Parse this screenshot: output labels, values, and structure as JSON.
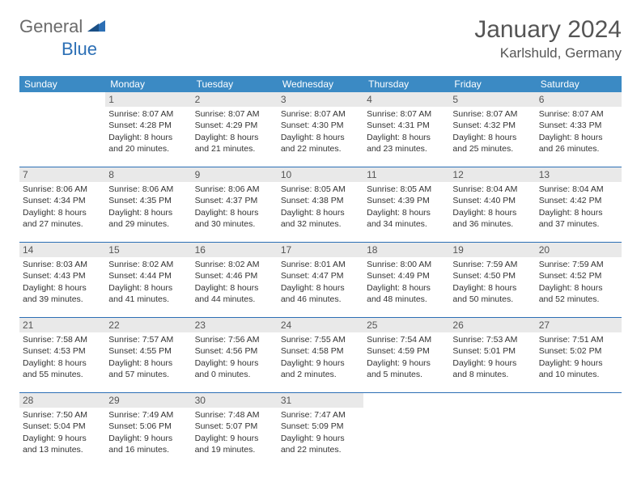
{
  "brand": {
    "part1": "General",
    "part2": "Blue"
  },
  "title": "January 2024",
  "location": "Karlshuld, Germany",
  "colors": {
    "header_bg": "#3b8ac4",
    "header_fg": "#ffffff",
    "row_divider": "#2c6fb5",
    "daynum_bg": "#e9e9e9",
    "text": "#333333",
    "logo_gray": "#6b6b6b",
    "logo_blue": "#2c6fb5"
  },
  "weekdays": [
    "Sunday",
    "Monday",
    "Tuesday",
    "Wednesday",
    "Thursday",
    "Friday",
    "Saturday"
  ],
  "weeks": [
    [
      null,
      {
        "n": "1",
        "sr": "8:07 AM",
        "ss": "4:28 PM",
        "dl": "8 hours and 20 minutes."
      },
      {
        "n": "2",
        "sr": "8:07 AM",
        "ss": "4:29 PM",
        "dl": "8 hours and 21 minutes."
      },
      {
        "n": "3",
        "sr": "8:07 AM",
        "ss": "4:30 PM",
        "dl": "8 hours and 22 minutes."
      },
      {
        "n": "4",
        "sr": "8:07 AM",
        "ss": "4:31 PM",
        "dl": "8 hours and 23 minutes."
      },
      {
        "n": "5",
        "sr": "8:07 AM",
        "ss": "4:32 PM",
        "dl": "8 hours and 25 minutes."
      },
      {
        "n": "6",
        "sr": "8:07 AM",
        "ss": "4:33 PM",
        "dl": "8 hours and 26 minutes."
      }
    ],
    [
      {
        "n": "7",
        "sr": "8:06 AM",
        "ss": "4:34 PM",
        "dl": "8 hours and 27 minutes."
      },
      {
        "n": "8",
        "sr": "8:06 AM",
        "ss": "4:35 PM",
        "dl": "8 hours and 29 minutes."
      },
      {
        "n": "9",
        "sr": "8:06 AM",
        "ss": "4:37 PM",
        "dl": "8 hours and 30 minutes."
      },
      {
        "n": "10",
        "sr": "8:05 AM",
        "ss": "4:38 PM",
        "dl": "8 hours and 32 minutes."
      },
      {
        "n": "11",
        "sr": "8:05 AM",
        "ss": "4:39 PM",
        "dl": "8 hours and 34 minutes."
      },
      {
        "n": "12",
        "sr": "8:04 AM",
        "ss": "4:40 PM",
        "dl": "8 hours and 36 minutes."
      },
      {
        "n": "13",
        "sr": "8:04 AM",
        "ss": "4:42 PM",
        "dl": "8 hours and 37 minutes."
      }
    ],
    [
      {
        "n": "14",
        "sr": "8:03 AM",
        "ss": "4:43 PM",
        "dl": "8 hours and 39 minutes."
      },
      {
        "n": "15",
        "sr": "8:02 AM",
        "ss": "4:44 PM",
        "dl": "8 hours and 41 minutes."
      },
      {
        "n": "16",
        "sr": "8:02 AM",
        "ss": "4:46 PM",
        "dl": "8 hours and 44 minutes."
      },
      {
        "n": "17",
        "sr": "8:01 AM",
        "ss": "4:47 PM",
        "dl": "8 hours and 46 minutes."
      },
      {
        "n": "18",
        "sr": "8:00 AM",
        "ss": "4:49 PM",
        "dl": "8 hours and 48 minutes."
      },
      {
        "n": "19",
        "sr": "7:59 AM",
        "ss": "4:50 PM",
        "dl": "8 hours and 50 minutes."
      },
      {
        "n": "20",
        "sr": "7:59 AM",
        "ss": "4:52 PM",
        "dl": "8 hours and 52 minutes."
      }
    ],
    [
      {
        "n": "21",
        "sr": "7:58 AM",
        "ss": "4:53 PM",
        "dl": "8 hours and 55 minutes."
      },
      {
        "n": "22",
        "sr": "7:57 AM",
        "ss": "4:55 PM",
        "dl": "8 hours and 57 minutes."
      },
      {
        "n": "23",
        "sr": "7:56 AM",
        "ss": "4:56 PM",
        "dl": "9 hours and 0 minutes."
      },
      {
        "n": "24",
        "sr": "7:55 AM",
        "ss": "4:58 PM",
        "dl": "9 hours and 2 minutes."
      },
      {
        "n": "25",
        "sr": "7:54 AM",
        "ss": "4:59 PM",
        "dl": "9 hours and 5 minutes."
      },
      {
        "n": "26",
        "sr": "7:53 AM",
        "ss": "5:01 PM",
        "dl": "9 hours and 8 minutes."
      },
      {
        "n": "27",
        "sr": "7:51 AM",
        "ss": "5:02 PM",
        "dl": "9 hours and 10 minutes."
      }
    ],
    [
      {
        "n": "28",
        "sr": "7:50 AM",
        "ss": "5:04 PM",
        "dl": "9 hours and 13 minutes."
      },
      {
        "n": "29",
        "sr": "7:49 AM",
        "ss": "5:06 PM",
        "dl": "9 hours and 16 minutes."
      },
      {
        "n": "30",
        "sr": "7:48 AM",
        "ss": "5:07 PM",
        "dl": "9 hours and 19 minutes."
      },
      {
        "n": "31",
        "sr": "7:47 AM",
        "ss": "5:09 PM",
        "dl": "9 hours and 22 minutes."
      },
      null,
      null,
      null
    ]
  ],
  "labels": {
    "sunrise": "Sunrise: ",
    "sunset": "Sunset: ",
    "daylight": "Daylight: "
  }
}
